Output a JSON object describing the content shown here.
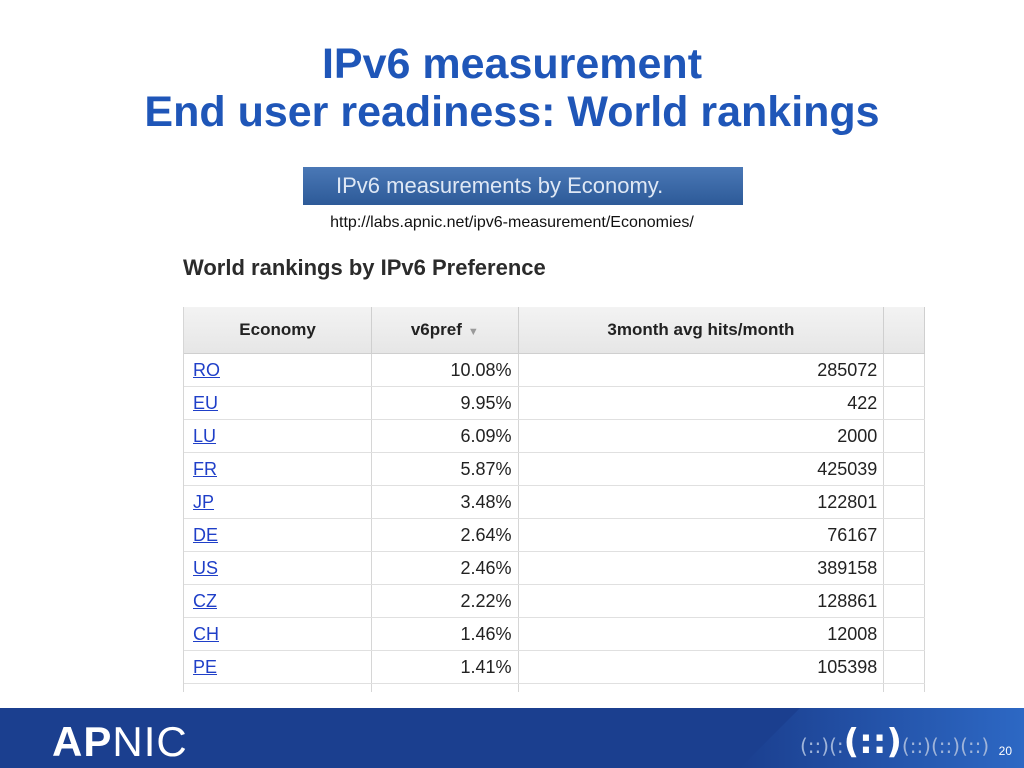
{
  "slide": {
    "title_line1": "IPv6 measurement",
    "title_line2": "End user readiness: World rankings",
    "banner": "IPv6 measurements by Economy.",
    "url": "http://labs.apnic.net/ipv6-measurement/Economies/",
    "page_number": "20"
  },
  "rankings": {
    "title": "World rankings by IPv6 Preference",
    "columns": [
      "Economy",
      "v6pref",
      "3month avg hits/month",
      ""
    ],
    "sort_indicator": "▼",
    "rows": [
      {
        "economy": "RO",
        "v6pref": "10.08%",
        "hits": "285072"
      },
      {
        "economy": "EU",
        "v6pref": "9.95%",
        "hits": "422"
      },
      {
        "economy": "LU",
        "v6pref": "6.09%",
        "hits": "2000"
      },
      {
        "economy": "FR",
        "v6pref": "5.87%",
        "hits": "425039"
      },
      {
        "economy": "JP",
        "v6pref": "3.48%",
        "hits": "122801"
      },
      {
        "economy": "DE",
        "v6pref": "2.64%",
        "hits": "76167"
      },
      {
        "economy": "US",
        "v6pref": "2.46%",
        "hits": "389158"
      },
      {
        "economy": "CZ",
        "v6pref": "2.22%",
        "hits": "128861"
      },
      {
        "economy": "CH",
        "v6pref": "1.46%",
        "hits": "12008"
      },
      {
        "economy": "PE",
        "v6pref": "1.41%",
        "hits": "105398"
      }
    ]
  },
  "footer": {
    "logo_bold": "AP",
    "logo_thin": "NIC",
    "icon": "apnic-dots-logo-icon",
    "colors": {
      "bar": "#1b3f8f",
      "title": "#1f56b8"
    }
  }
}
